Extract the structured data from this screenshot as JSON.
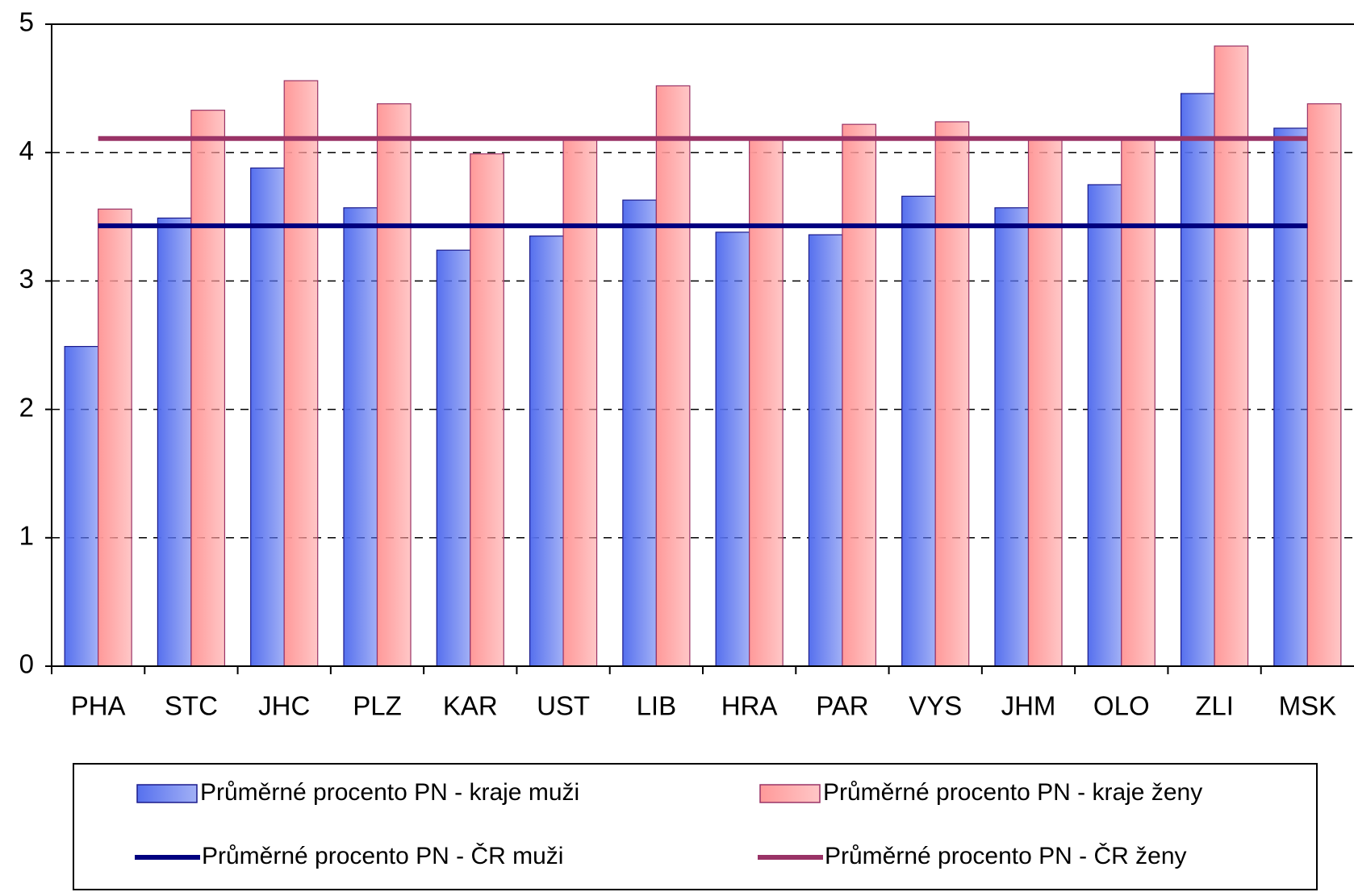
{
  "chart_data": {
    "type": "bar",
    "categories": [
      "PHA",
      "STC",
      "JHC",
      "PLZ",
      "KAR",
      "UST",
      "LIB",
      "HRA",
      "PAR",
      "VYS",
      "JHM",
      "OLO",
      "ZLI",
      "MSK"
    ],
    "series": [
      {
        "name": "Průměrné procento PN - kraje muži",
        "color": "#5670ee",
        "values": [
          2.49,
          3.49,
          3.88,
          3.57,
          3.24,
          3.35,
          3.63,
          3.38,
          3.36,
          3.66,
          3.57,
          3.75,
          4.46,
          4.19
        ]
      },
      {
        "name": "Průměrné procento PN - kraje ženy",
        "color": "#ff9999",
        "values": [
          3.56,
          4.33,
          4.56,
          4.38,
          3.99,
          4.11,
          4.52,
          4.11,
          4.22,
          4.24,
          4.11,
          4.11,
          4.83,
          4.38
        ]
      }
    ],
    "reference_lines": [
      {
        "name": "Průměrné procento PN - ČR muži",
        "color": "#000080",
        "value": 3.43
      },
      {
        "name": "Průměrné procento PN - ČR ženy",
        "color": "#993366",
        "value": 4.11
      }
    ],
    "ylim": [
      0,
      5
    ],
    "yticks": [
      0,
      1,
      2,
      3,
      4,
      5
    ],
    "grid": true
  }
}
